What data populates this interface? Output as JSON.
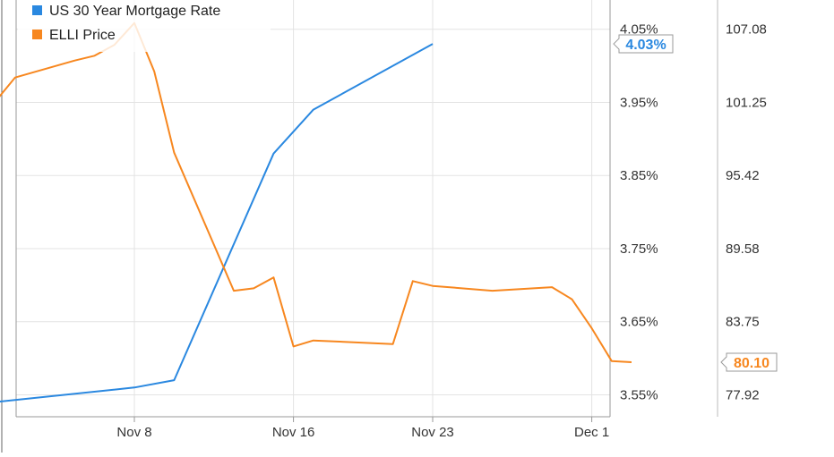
{
  "chart_data": {
    "type": "line",
    "x_ticks": [
      "Nov 8",
      "Nov 16",
      "Nov 23",
      "Dec 1"
    ],
    "legend_placement": "top-left",
    "grid": true,
    "left_axis": {
      "label": "",
      "tick_labels": [
        "4.05%",
        "3.95%",
        "3.85%",
        "3.75%",
        "3.65%",
        "3.55%"
      ],
      "range": [
        3.52,
        4.09
      ]
    },
    "right_axis": {
      "label": "",
      "tick_labels": [
        "107.08",
        "101.25",
        "95.42",
        "89.58",
        "83.75",
        "77.92"
      ],
      "range": [
        75.6,
        110.0
      ]
    },
    "series": [
      {
        "name": "US 30 Year Mortgage Rate",
        "color": "#2a88e0",
        "axis": "left",
        "end_label": "4.03%",
        "points": [
          {
            "x": "2012-11-01",
            "y": 3.54
          },
          {
            "x": "2012-11-08",
            "y": 3.56
          },
          {
            "x": "2012-11-10",
            "y": 3.57
          },
          {
            "x": "2012-11-15",
            "y": 3.88
          },
          {
            "x": "2012-11-17",
            "y": 3.94
          },
          {
            "x": "2012-11-23",
            "y": 4.03
          }
        ]
      },
      {
        "name": "ELLI Price",
        "color": "#f7871f",
        "axis": "right",
        "end_label": "80.10",
        "points": [
          {
            "x": "2012-10-31",
            "y": 102.9
          },
          {
            "x": "2012-11-01",
            "y": 101.6
          },
          {
            "x": "2012-11-02",
            "y": 103.6
          },
          {
            "x": "2012-11-05",
            "y": 105.0
          },
          {
            "x": "2012-11-06",
            "y": 105.4
          },
          {
            "x": "2012-11-07",
            "y": 106.3
          },
          {
            "x": "2012-11-08",
            "y": 108.1
          },
          {
            "x": "2012-11-09",
            "y": 104.1
          },
          {
            "x": "2012-11-10",
            "y": 97.4
          },
          {
            "x": "2012-11-13",
            "y": 86.0
          },
          {
            "x": "2012-11-14",
            "y": 86.2
          },
          {
            "x": "2012-11-15",
            "y": 87.1
          },
          {
            "x": "2012-11-16",
            "y": 81.4
          },
          {
            "x": "2012-11-17",
            "y": 81.9
          },
          {
            "x": "2012-11-21",
            "y": 81.6
          },
          {
            "x": "2012-11-22",
            "y": 86.8
          },
          {
            "x": "2012-11-23",
            "y": 86.4
          },
          {
            "x": "2012-11-26",
            "y": 86.0
          },
          {
            "x": "2012-11-29",
            "y": 86.3
          },
          {
            "x": "2012-11-30",
            "y": 85.3
          },
          {
            "x": "2012-12-01",
            "y": 82.9
          },
          {
            "x": "2012-12-02",
            "y": 80.2
          },
          {
            "x": "2012-12-03",
            "y": 80.1
          }
        ]
      }
    ]
  }
}
